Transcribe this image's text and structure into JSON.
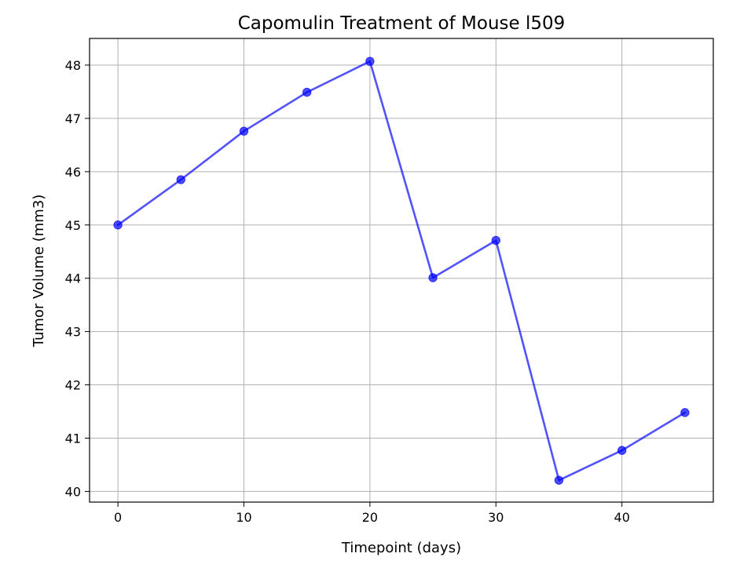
{
  "chart_data": {
    "type": "line",
    "title": "Capomulin Treatment of Mouse l509",
    "xlabel": "Timepoint (days)",
    "ylabel": "Tumor Volume (mm3)",
    "x": [
      0,
      5,
      10,
      15,
      20,
      25,
      30,
      35,
      40,
      45
    ],
    "series": [
      {
        "values": [
          45.0,
          45.85,
          46.76,
          47.49,
          48.07,
          44.01,
          44.71,
          40.21,
          40.77,
          41.48
        ],
        "color": "#0000ff",
        "marker": "circle"
      }
    ],
    "xlim": [
      -2.25,
      47.25
    ],
    "ylim": [
      39.8,
      48.5
    ],
    "xticks": [
      "0",
      "10",
      "20",
      "30",
      "40"
    ],
    "yticks": [
      "40",
      "41",
      "42",
      "43",
      "44",
      "45",
      "46",
      "47",
      "48"
    ],
    "grid": true
  }
}
